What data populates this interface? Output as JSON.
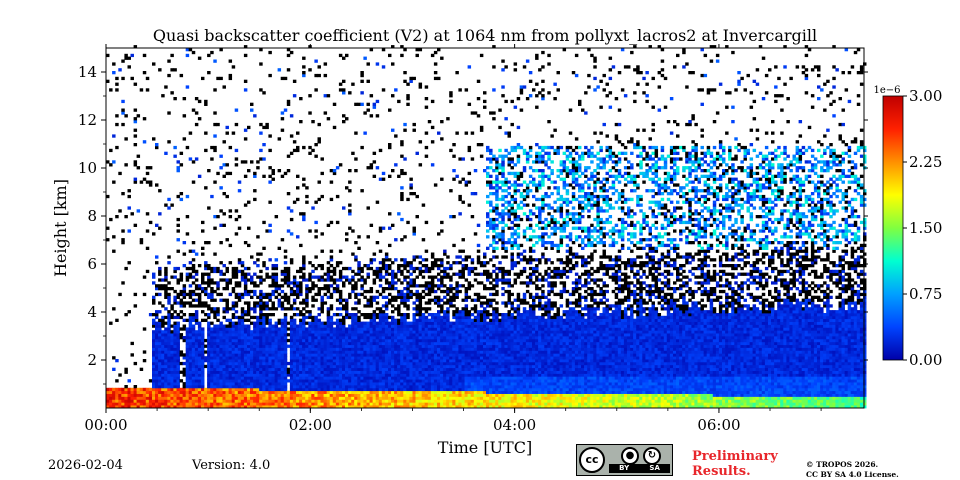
{
  "chart_data": {
    "type": "heatmap",
    "title": "Quasi backscatter coefficient (V2) at 1064 nm from pollyxt_lacros2 at Invercargill",
    "xlabel": "Time [UTC]",
    "ylabel": "Height [km]",
    "x_unit": "hours UTC",
    "xlim": [
      0,
      7.42
    ],
    "ylim": [
      0,
      15
    ],
    "x_ticks": [
      0,
      2,
      4,
      6
    ],
    "x_tick_labels": [
      "00:00",
      "02:00",
      "04:00",
      "06:00"
    ],
    "y_ticks": [
      2,
      4,
      6,
      8,
      10,
      12,
      14
    ],
    "y_tick_labels": [
      "2",
      "4",
      "6",
      "8",
      "10",
      "12",
      "14"
    ],
    "colorbar": {
      "min": 0.0,
      "max": 3.0,
      "scale_label": "1e−6",
      "ticks": [
        0.0,
        0.75,
        1.5,
        2.25,
        3.0
      ],
      "tick_labels": [
        "0.00",
        "0.75",
        "1.50",
        "2.25",
        "3.00"
      ],
      "colormap": [
        "#0000a8",
        "#0044ff",
        "#00a0ff",
        "#00ffd0",
        "#80ff40",
        "#ffff00",
        "#ff9000",
        "#ff2000",
        "#c00000"
      ]
    },
    "layers": [
      {
        "name": "surface high-backscatter layer",
        "start_h": 0.0,
        "end_h": 7.42,
        "bottom_km": 0.0,
        "top_km_start": 0.8,
        "top_km_end": 0.4,
        "value_start": 2.6,
        "value_end": 1.3
      },
      {
        "name": "boundary layer",
        "start_h": 0.43,
        "end_h": 7.42,
        "bottom_km": 0.4,
        "top_km_start": 3.3,
        "top_km_end": 4.3,
        "value": 0.1
      },
      {
        "name": "aerosol / cloud layer",
        "start_h": 3.7,
        "end_h": 7.42,
        "bottom_km": 6.5,
        "top_km": 10.8,
        "value": 0.8
      }
    ],
    "gaps_in_boundary_layer": [
      {
        "start_h": 0.7,
        "end_h": 0.78
      },
      {
        "start_h": 0.95,
        "end_h": 0.99
      },
      {
        "start_h": 1.76,
        "end_h": 1.8
      }
    ]
  },
  "footer": {
    "date": "2026-02-04",
    "version": "Version: 4.0",
    "license_badge": {
      "symbol": "cc",
      "left": "BY",
      "right": "SA"
    },
    "preliminary_line1": "Preliminary",
    "preliminary_line2": "Results.",
    "copyright_line1": "© TROPOS 2026.",
    "copyright_line2": "CC BY SA 4.0 License."
  }
}
